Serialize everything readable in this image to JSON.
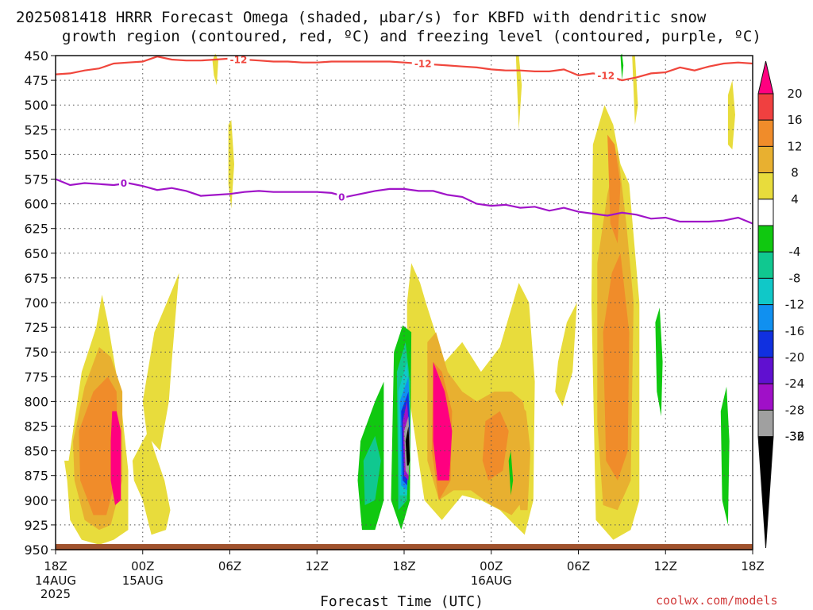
{
  "title_line1": "2025081418 HRRR Forecast Omega (shaded, μbar/s) for KBFD with dendritic snow",
  "title_line2": "growth region (contoured, red, ºC) and freezing level (contoured, purple, ºC)",
  "xlabel": "Forecast Time (UTC)",
  "credit": "coolwx.com/models",
  "colors": {
    "dgz": "#f0463c",
    "freezing": "#a014c8",
    "ground": "#a0522d",
    "grid": "#555555"
  },
  "chart_data": {
    "type": "heatmap",
    "x_unit": "hours since 2025-08-14 18Z",
    "xlim": [
      0,
      48
    ],
    "ylim": [
      450,
      950
    ],
    "y_ticks": [
      450,
      475,
      500,
      525,
      550,
      575,
      600,
      625,
      650,
      675,
      700,
      725,
      750,
      775,
      800,
      825,
      850,
      875,
      900,
      925,
      950
    ],
    "x_ticks": [
      {
        "x": 0,
        "label": "18Z",
        "sub1": "14AUG",
        "sub2": "2025"
      },
      {
        "x": 6,
        "label": "00Z",
        "sub1": "15AUG",
        "sub2": ""
      },
      {
        "x": 12,
        "label": "06Z",
        "sub1": "",
        "sub2": ""
      },
      {
        "x": 18,
        "label": "12Z",
        "sub1": "",
        "sub2": ""
      },
      {
        "x": 24,
        "label": "18Z",
        "sub1": "",
        "sub2": ""
      },
      {
        "x": 30,
        "label": "00Z",
        "sub1": "16AUG",
        "sub2": ""
      },
      {
        "x": 36,
        "label": "06Z",
        "sub1": "",
        "sub2": ""
      },
      {
        "x": 42,
        "label": "12Z",
        "sub1": "",
        "sub2": ""
      },
      {
        "x": 48,
        "label": "18Z",
        "sub1": "",
        "sub2": ""
      }
    ],
    "colorbar": [
      {
        "label": "20",
        "color": "#ff0080"
      },
      {
        "label": "16",
        "color": "#f04040"
      },
      {
        "label": "12",
        "color": "#f08c2a"
      },
      {
        "label": "8",
        "color": "#e8b030"
      },
      {
        "label": "4",
        "color": "#e8dc3c"
      },
      {
        "label": "",
        "color": "#ffffff"
      },
      {
        "label": "-4",
        "color": "#10c810"
      },
      {
        "label": "-8",
        "color": "#10c890"
      },
      {
        "label": "-12",
        "color": "#10c8c8"
      },
      {
        "label": "-16",
        "color": "#1090f0"
      },
      {
        "label": "-20",
        "color": "#1030e0"
      },
      {
        "label": "-24",
        "color": "#6010d0"
      },
      {
        "label": "-28",
        "color": "#a010c8"
      },
      {
        "label": "-32",
        "color": "#a0a0a0"
      },
      {
        "label": "-36",
        "color": "#000000"
      }
    ],
    "contours": [
      {
        "name": "-12",
        "kind": "dgz",
        "x": [
          0,
          1,
          2,
          3,
          4,
          5,
          6,
          7,
          8,
          9,
          10,
          11,
          12,
          13,
          14,
          15,
          16,
          17,
          18,
          19,
          20,
          21,
          22,
          23,
          24,
          25,
          26,
          27,
          28,
          29,
          30,
          31,
          32,
          33,
          34,
          35,
          36,
          37,
          38,
          39,
          40,
          41,
          42,
          43,
          44,
          45,
          46,
          47,
          48
        ],
        "y": [
          469,
          468,
          465,
          463,
          458,
          457,
          456,
          451,
          454,
          455,
          455,
          454,
          453,
          454,
          455,
          456,
          456,
          457,
          457,
          456,
          456,
          456,
          456,
          456,
          457,
          458,
          459,
          460,
          461,
          462,
          464,
          465,
          465,
          466,
          466,
          464,
          470,
          468,
          470,
          475,
          472,
          468,
          467,
          462,
          465,
          461,
          458,
          457,
          458
        ],
        "labels": [
          {
            "x": 12.6,
            "text": "-12"
          },
          {
            "x": 25.3,
            "text": "-12"
          },
          {
            "x": 37.9,
            "text": "-12"
          }
        ]
      },
      {
        "name": "0",
        "kind": "freezing",
        "x": [
          0,
          1,
          2,
          3,
          4,
          5,
          6,
          7,
          8,
          9,
          10,
          11,
          12,
          13,
          14,
          15,
          16,
          17,
          18,
          19,
          20,
          21,
          22,
          23,
          24,
          25,
          26,
          27,
          28,
          29,
          30,
          31,
          32,
          33,
          34,
          35,
          36,
          37,
          38,
          39,
          40,
          41,
          42,
          43,
          44,
          45,
          46,
          47,
          48
        ],
        "y": [
          575,
          581,
          579,
          580,
          581,
          579,
          582,
          586,
          584,
          587,
          592,
          591,
          590,
          588,
          587,
          588,
          588,
          588,
          588,
          589,
          593,
          590,
          587,
          585,
          585,
          587,
          587,
          591,
          593,
          600,
          602,
          601,
          604,
          603,
          607,
          604,
          608,
          610,
          612,
          609,
          611,
          615,
          614,
          618,
          618,
          618,
          617,
          614,
          620
        ],
        "labels": [
          {
            "x": 4.7,
            "text": "0"
          },
          {
            "x": 19.7,
            "text": "0"
          }
        ]
      }
    ],
    "regions": [
      {
        "level": 4,
        "x": [
          0.9,
          1.8,
          2.8,
          3.2,
          3.6,
          4.5,
          5.0,
          5.0,
          4.0,
          3.0,
          1.8,
          1.0,
          0.8,
          0.6
        ],
        "y": [
          860,
          770,
          725,
          692,
          720,
          800,
          870,
          930,
          940,
          945,
          940,
          920,
          880,
          860
        ]
      },
      {
        "level": 8,
        "x": [
          1.2,
          2.0,
          3.0,
          3.8,
          4.6,
          4.6,
          3.8,
          3.0,
          2.0,
          1.3
        ],
        "y": [
          840,
          785,
          745,
          755,
          790,
          880,
          925,
          930,
          920,
          880
        ]
      },
      {
        "level": 12,
        "x": [
          1.6,
          2.6,
          3.6,
          4.2,
          4.3,
          3.5,
          2.6,
          1.7
        ],
        "y": [
          830,
          790,
          775,
          790,
          870,
          915,
          915,
          880
        ]
      },
      {
        "level": 20,
        "x": [
          3.9,
          4.2,
          4.5,
          4.5,
          4.1,
          3.8,
          3.8
        ],
        "y": [
          810,
          810,
          830,
          900,
          905,
          880,
          840
        ]
      },
      {
        "level": 4,
        "x": [
          6.8,
          7.8,
          8.5,
          8.0,
          7.8,
          7.2,
          6.3,
          6.0
        ],
        "y": [
          730,
          695,
          670,
          760,
          800,
          850,
          835,
          800
        ]
      },
      {
        "level": 4,
        "x": [
          5.3,
          6.0,
          6.4,
          6.8,
          7.5,
          7.9,
          7.6,
          6.6,
          6.0,
          5.4
        ],
        "y": [
          860,
          840,
          830,
          850,
          880,
          910,
          930,
          935,
          900,
          880
        ]
      },
      {
        "level": 4,
        "x": [
          11.9,
          12.1,
          12.3,
          12.1,
          11.9
        ],
        "y": [
          520,
          515,
          560,
          605,
          580
        ]
      },
      {
        "level": 4,
        "x": [
          10.8,
          11.0,
          11.2,
          11.1,
          10.9
        ],
        "y": [
          455,
          448,
          455,
          480,
          470
        ]
      },
      {
        "level": 4,
        "x": [
          24.2,
          24.5,
          25.1,
          25.5,
          26.8,
          28.0,
          29.3,
          30.6,
          31.3,
          31.9,
          32.6,
          33.0,
          32.9,
          32.3,
          31.6,
          30.6,
          29.3,
          28.0,
          26.6,
          25.4,
          24.4,
          24.2
        ],
        "y": [
          700,
          660,
          680,
          700,
          760,
          740,
          770,
          745,
          710,
          680,
          700,
          780,
          900,
          935,
          925,
          910,
          900,
          895,
          920,
          900,
          800,
          720
        ]
      },
      {
        "level": 8,
        "x": [
          25.6,
          26.2,
          27.0,
          28.0,
          29.0,
          30.2,
          31.4,
          32.2,
          32.5,
          32.2,
          31.4,
          30.0,
          28.6,
          27.4,
          26.4,
          25.6
        ],
        "y": [
          740,
          730,
          770,
          790,
          800,
          790,
          790,
          800,
          830,
          900,
          915,
          905,
          890,
          890,
          900,
          860
        ]
      },
      {
        "level": 12,
        "x": [
          26.0,
          26.6,
          27.3,
          27.2,
          26.4,
          25.9
        ],
        "y": [
          760,
          770,
          810,
          880,
          900,
          850
        ]
      },
      {
        "level": 20,
        "x": [
          26.0,
          26.8,
          27.3,
          27.1,
          26.3,
          26.0
        ],
        "y": [
          760,
          790,
          830,
          880,
          880,
          840
        ]
      },
      {
        "level": 12,
        "x": [
          29.6,
          30.6,
          31.2,
          30.8,
          29.8,
          29.4
        ],
        "y": [
          820,
          810,
          830,
          870,
          880,
          860
        ]
      },
      {
        "level": 8,
        "x": [
          31.8,
          32.4,
          32.7,
          32.5,
          32.0,
          31.6
        ],
        "y": [
          800,
          810,
          850,
          910,
          910,
          860
        ]
      },
      {
        "level": 4,
        "x": [
          34.6,
          35.2,
          35.9,
          35.6,
          34.9,
          34.4
        ],
        "y": [
          760,
          720,
          700,
          770,
          805,
          790
        ]
      },
      {
        "level": 4,
        "x": [
          37.0,
          37.8,
          38.4,
          38.9,
          39.5,
          40.2,
          40.2,
          39.6,
          38.4,
          37.2,
          36.9
        ],
        "y": [
          540,
          500,
          520,
          560,
          580,
          700,
          900,
          930,
          940,
          920,
          700
        ]
      },
      {
        "level": 8,
        "x": [
          37.3,
          38.0,
          38.7,
          39.3,
          39.8,
          39.6,
          38.7,
          37.7,
          37.3
        ],
        "y": [
          660,
          590,
          545,
          620,
          700,
          880,
          910,
          905,
          820
        ]
      },
      {
        "level": 12,
        "x": [
          37.7,
          38.3,
          38.9,
          39.5,
          39.4,
          38.7,
          37.9
        ],
        "y": [
          730,
          670,
          650,
          730,
          850,
          880,
          860
        ]
      },
      {
        "level": 12,
        "x": [
          38.0,
          38.5,
          38.9,
          38.7,
          38.2
        ],
        "y": [
          530,
          540,
          580,
          640,
          620
        ]
      },
      {
        "level": 4,
        "x": [
          31.7,
          31.9,
          32.1,
          31.9
        ],
        "y": [
          450,
          450,
          480,
          525
        ]
      },
      {
        "level": 4,
        "x": [
          39.7,
          39.9,
          40.1,
          39.9
        ],
        "y": [
          450,
          450,
          500,
          520
        ]
      },
      {
        "level": 4,
        "x": [
          46.3,
          46.6,
          46.8,
          46.6,
          46.3
        ],
        "y": [
          490,
          475,
          510,
          545,
          540
        ]
      },
      {
        "level": -4,
        "x": [
          21.0,
          22.0,
          22.6,
          22.6,
          22.0,
          21.1,
          20.8
        ],
        "y": [
          840,
          800,
          780,
          900,
          930,
          930,
          880
        ]
      },
      {
        "level": -8,
        "x": [
          21.2,
          22.0,
          22.4,
          22.0,
          21.3
        ],
        "y": [
          860,
          835,
          860,
          900,
          905
        ]
      },
      {
        "level": -4,
        "x": [
          23.3,
          23.9,
          24.5,
          24.4,
          23.8,
          23.1
        ],
        "y": [
          750,
          723,
          730,
          900,
          930,
          900
        ]
      },
      {
        "level": -8,
        "x": [
          23.5,
          24.1,
          24.4,
          24.2,
          23.6
        ],
        "y": [
          770,
          740,
          780,
          900,
          910
        ]
      },
      {
        "level": -12,
        "x": [
          23.6,
          24.2,
          24.4,
          24.2,
          23.7
        ],
        "y": [
          790,
          760,
          800,
          895,
          895
        ]
      },
      {
        "level": -16,
        "x": [
          23.7,
          24.3,
          24.4,
          24.2,
          23.8
        ],
        "y": [
          800,
          775,
          820,
          890,
          885
        ]
      },
      {
        "level": -20,
        "x": [
          23.8,
          24.3,
          24.4,
          24.2,
          23.9
        ],
        "y": [
          810,
          790,
          830,
          885,
          880
        ]
      },
      {
        "level": -28,
        "x": [
          23.9,
          24.2,
          24.4,
          24.3,
          24.0
        ],
        "y": [
          820,
          800,
          840,
          880,
          875
        ]
      },
      {
        "level": -32,
        "x": [
          24.0,
          24.3,
          24.4,
          24.3,
          24.1
        ],
        "y": [
          830,
          815,
          850,
          875,
          870
        ]
      },
      {
        "level": -36,
        "x": [
          24.1,
          24.3,
          24.4,
          24.3,
          24.2
        ],
        "y": [
          840,
          825,
          860,
          865,
          865
        ]
      },
      {
        "level": -4,
        "x": [
          41.3,
          41.6,
          41.8,
          41.7,
          41.4
        ],
        "y": [
          720,
          705,
          760,
          815,
          790
        ]
      },
      {
        "level": -4,
        "x": [
          45.8,
          46.2,
          46.4,
          46.3,
          45.9
        ],
        "y": [
          810,
          785,
          840,
          925,
          900
        ]
      },
      {
        "level": -4,
        "x": [
          31.2,
          31.35,
          31.5,
          31.35
        ],
        "y": [
          860,
          850,
          880,
          895
        ]
      },
      {
        "level": -4,
        "x": [
          38.9,
          39.0,
          39.1,
          39.0
        ],
        "y": [
          450,
          448,
          460,
          475
        ]
      }
    ]
  }
}
